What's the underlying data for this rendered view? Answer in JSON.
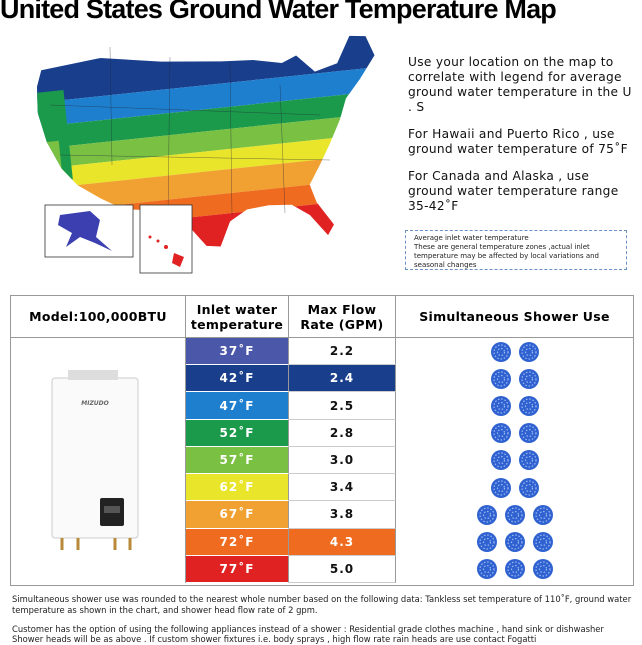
{
  "title": "United States Ground Water Temperature Map",
  "map_text": [
    "Use your location on the map to correlate with legend for average ground water temperature in the U . S",
    "For Hawaii and Puerto Rico , use ground water temperature of 75˚F",
    "For Canada and Alaska , use ground water temperature range 35-42˚F"
  ],
  "legend_note": [
    "Average inlet water temperature",
    "These are general temperature zones ,actual inlet temperature may be affected by local variations and seasonal changes"
  ],
  "table": {
    "headers": [
      "Model:100,000BTU",
      "Inlet water temperature",
      "Max Flow Rate (GPM)",
      "Simultaneous Shower Use"
    ],
    "heater_brand": "MIZUDO",
    "rows": [
      {
        "temperature": "37˚F",
        "color": "#4b57a9",
        "flow_rate": "2.2",
        "showers": 2
      },
      {
        "temperature": "42˚F",
        "color": "#193f8c",
        "flow_rate": "2.4",
        "flow_color": "#193f8c",
        "showers": 2
      },
      {
        "temperature": "47˚F",
        "color": "#1f7fcf",
        "flow_rate": "2.5",
        "showers": 2
      },
      {
        "temperature": "52˚F",
        "color": "#1c9a4b",
        "flow_rate": "2.8",
        "showers": 2
      },
      {
        "temperature": "57˚F",
        "color": "#79c043",
        "flow_rate": "3.0",
        "showers": 2
      },
      {
        "temperature": "62˚F",
        "color": "#e9e52b",
        "flow_rate": "3.4",
        "showers": 2
      },
      {
        "temperature": "67˚F",
        "color": "#f0a131",
        "flow_rate": "3.8",
        "showers": 3
      },
      {
        "temperature": "72˚F",
        "color": "#ee6b1f",
        "flow_rate": "4.3",
        "flow_color": "#ee6b1f",
        "showers": 3
      },
      {
        "temperature": "77˚F",
        "color": "#e02222",
        "flow_rate": "5.0",
        "showers": 3
      }
    ]
  },
  "footnotes": [
    "Simultaneous shower use was rounded to the nearest whole number based on the following data: Tankless set temperature of 110˚F, ground water temperature as shown in the chart, and shower head flow rate of 2 gpm.",
    "Customer has the option of using the following appliances instead of a shower : Residential grade clothes machine , hand sink or dishwasher",
    "Shower heads will be as above . If custom shower fixtures i.e. body sprays , high flow rate rain heads are use contact Fogatti"
  ]
}
